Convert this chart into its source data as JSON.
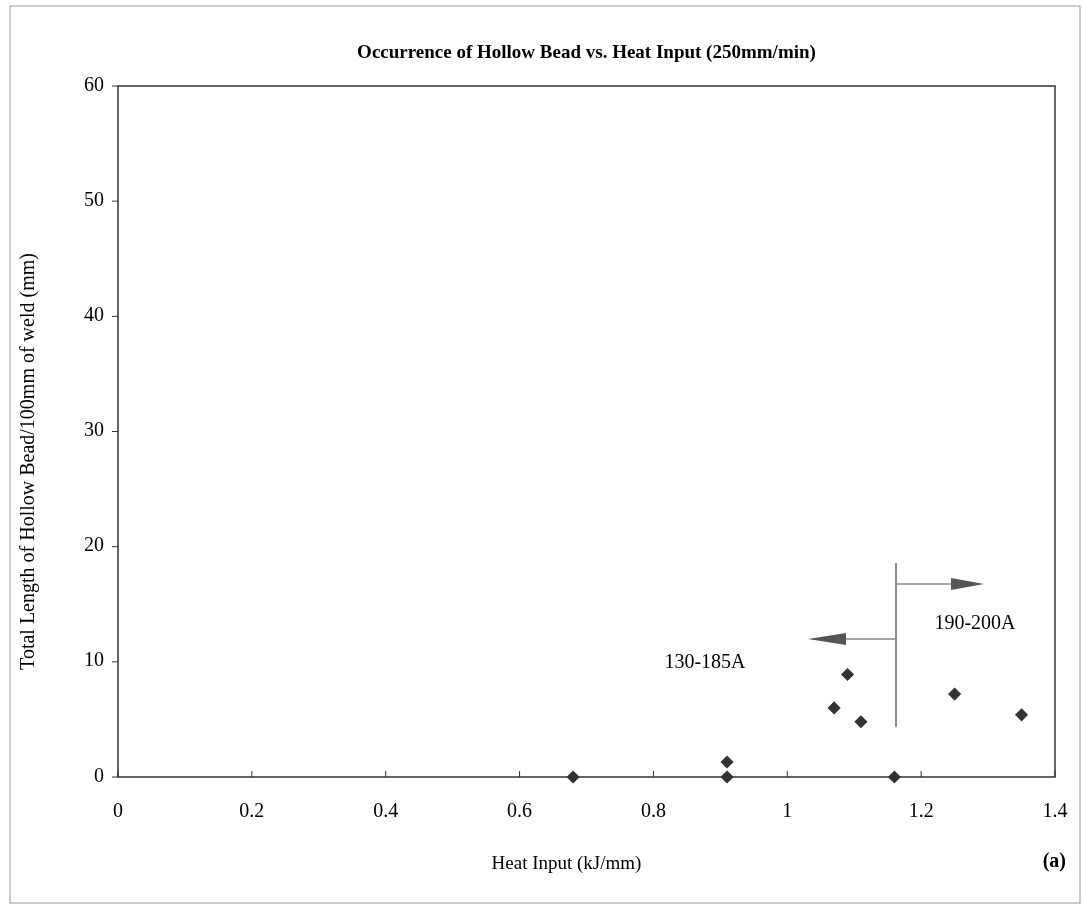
{
  "chart_data": {
    "type": "scatter",
    "title": "Occurrence of Hollow Bead vs. Heat Input (250mm/min)",
    "xlabel": "Heat Input (kJ/mm)",
    "ylabel": "Total Length of Hollow Bead/100mm of weld (mm)",
    "x": [
      0.68,
      0.91,
      0.91,
      1.07,
      1.09,
      1.11,
      1.16,
      1.25,
      1.35
    ],
    "series": [
      {
        "color": "#333333",
        "values": [
          0,
          0,
          1.3,
          6.0,
          8.9,
          4.8,
          0,
          7.2,
          5.4
        ]
      }
    ],
    "marker": "diamond",
    "grid": false,
    "xlim": [
      0,
      1.4
    ],
    "xticks": [
      0,
      0.2,
      0.4,
      0.6,
      0.8,
      1,
      1.2,
      1.4
    ],
    "ylim": [
      0,
      60
    ],
    "yticks": [
      0,
      10,
      20,
      30,
      40,
      50,
      60
    ],
    "annotations": [
      "130-185A",
      "190-200A",
      "(a)"
    ]
  }
}
